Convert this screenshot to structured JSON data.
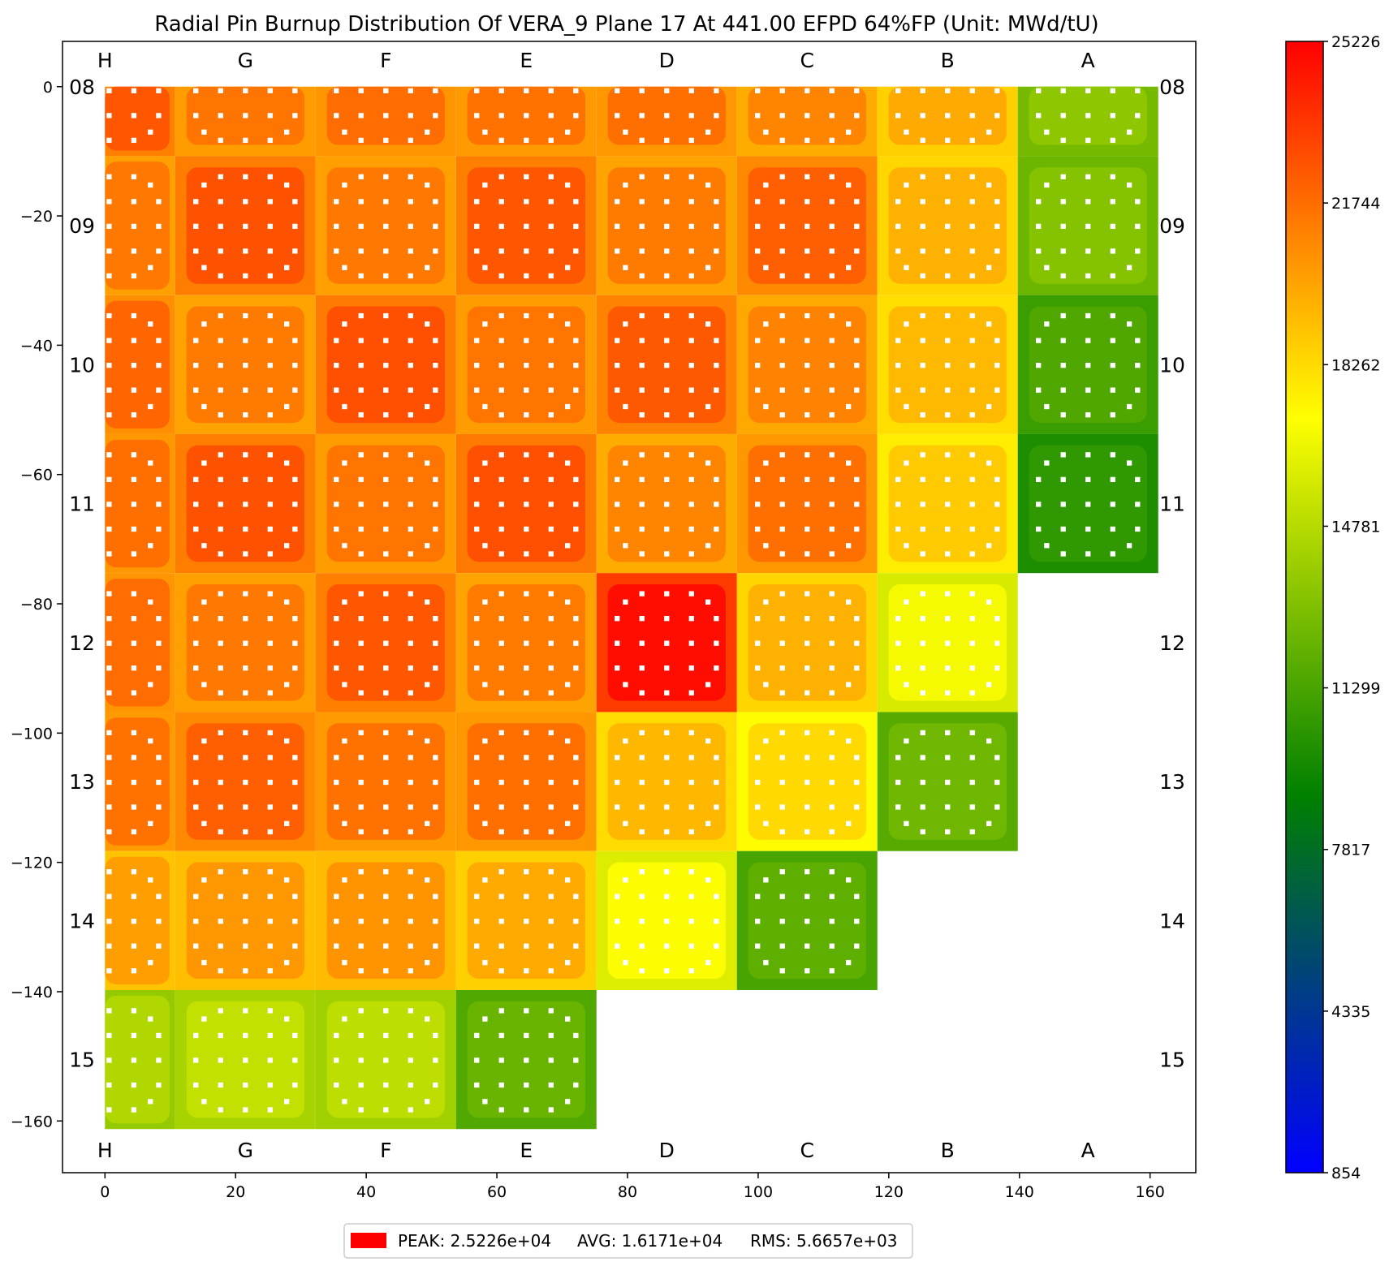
{
  "chart_data": {
    "type": "heatmap",
    "title": "Radial Pin Burnup Distribution Of VERA_9 Plane 17 At 441.00 EFPD 64%FP (Unit: MWd/tU)",
    "x_ticks": [
      0,
      20,
      40,
      60,
      80,
      100,
      120,
      140,
      160
    ],
    "y_ticks": [
      0,
      -20,
      -40,
      -60,
      -80,
      -100,
      -120,
      -140,
      -160
    ],
    "xlim": [
      -6.5,
      167
    ],
    "ylim": [
      -168,
      7
    ],
    "column_labels": [
      "H",
      "G",
      "F",
      "E",
      "D",
      "C",
      "B",
      "A"
    ],
    "row_labels": [
      "08",
      "09",
      "10",
      "11",
      "12",
      "13",
      "14",
      "15"
    ],
    "colorbar": {
      "min": 854,
      "max": 25226,
      "ticks": [
        25226,
        21744,
        18262,
        14781,
        11299,
        7817,
        4335,
        854
      ],
      "colors": [
        "#0000ff",
        "#008000",
        "#ffff00",
        "#ff0000"
      ]
    },
    "assembly_burnup": [
      [
        22500,
        21500,
        21800,
        21600,
        21700,
        21000,
        19800,
        13500
      ],
      [
        21400,
        22600,
        21400,
        22500,
        21300,
        22200,
        19600,
        13200
      ],
      [
        22000,
        21300,
        22700,
        21500,
        22400,
        21100,
        19300,
        11500
      ],
      [
        21700,
        22600,
        21500,
        22700,
        21000,
        21700,
        18800,
        10500
      ],
      [
        21800,
        21400,
        22500,
        21300,
        24800,
        19600,
        16800,
        null
      ],
      [
        21600,
        22200,
        21600,
        21700,
        19400,
        18300,
        12500,
        null
      ],
      [
        20200,
        20400,
        20500,
        19800,
        17000,
        12000,
        null,
        null
      ],
      [
        14600,
        15200,
        15000,
        12300,
        null,
        null,
        null,
        null
      ]
    ],
    "stats": {
      "peak": "PEAK: 2.5226e+04",
      "avg": "AVG: 1.6171e+04",
      "rms": "RMS: 5.6657e+03"
    }
  }
}
